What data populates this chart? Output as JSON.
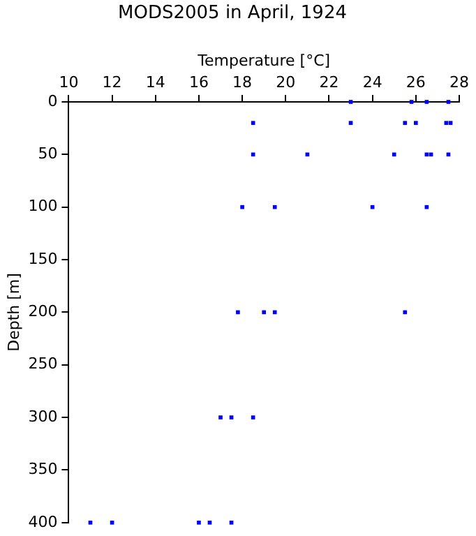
{
  "chart_data": {
    "type": "scatter",
    "title": "MODS2005 in April, 1924",
    "xlabel": "Temperature [°C]",
    "ylabel": "Depth [m]",
    "x": [
      23,
      25.8,
      26.5,
      27.5,
      18.5,
      23,
      25.5,
      26,
      27.4,
      27.6,
      18.5,
      21,
      25,
      26.5,
      26.7,
      27.5,
      18,
      19.5,
      24,
      26.5,
      17.8,
      19,
      19.5,
      25.5,
      17,
      17.5,
      18.5,
      11,
      12,
      16,
      16.5,
      17.5
    ],
    "values": [
      0,
      0,
      0,
      0,
      20,
      20,
      20,
      20,
      20,
      20,
      50,
      50,
      50,
      50,
      50,
      50,
      100,
      100,
      100,
      100,
      200,
      200,
      200,
      200,
      300,
      300,
      300,
      400,
      400,
      400,
      400,
      400
    ],
    "color": "#0000ff",
    "marker": "square",
    "grid": false,
    "legend": false,
    "xlim": [
      10,
      28
    ],
    "xticks": [
      10,
      12,
      14,
      16,
      18,
      20,
      22,
      24,
      26,
      28
    ],
    "ylim": [
      400,
      0
    ],
    "yticks": [
      0,
      50,
      100,
      150,
      200,
      250,
      300,
      350,
      400
    ]
  }
}
